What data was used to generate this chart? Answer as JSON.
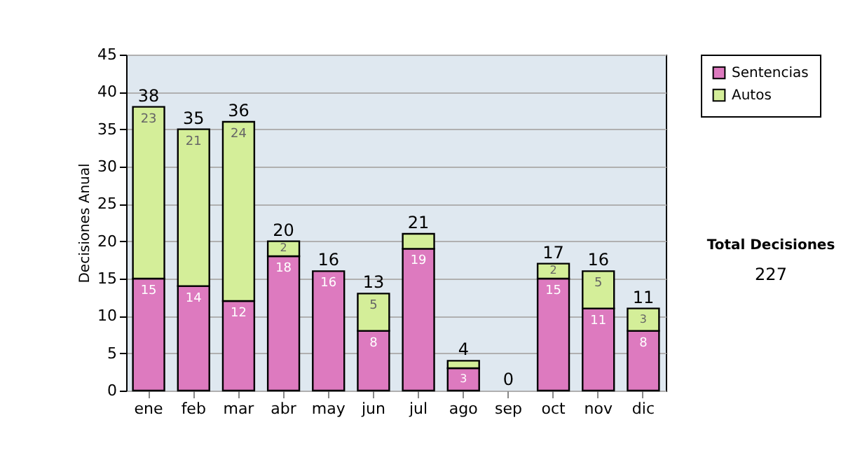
{
  "chart_data": {
    "type": "bar",
    "ylabel": "Decisiones Anual",
    "stacked": true,
    "categories": [
      "ene",
      "feb",
      "mar",
      "abr",
      "may",
      "jun",
      "jul",
      "ago",
      "sep",
      "oct",
      "nov",
      "dic"
    ],
    "series": [
      {
        "name": "Sentencias",
        "color": "#dd7abf",
        "values": [
          15,
          14,
          12,
          18,
          16,
          8,
          19,
          3,
          0,
          15,
          11,
          8
        ],
        "value_labels": [
          "15",
          "14",
          "12",
          "18",
          "16",
          "8",
          "19",
          "3",
          null,
          "15",
          "11",
          "8"
        ]
      },
      {
        "name": "Autos",
        "color": "#d4ee99",
        "values": [
          23,
          21,
          24,
          2,
          0,
          5,
          2,
          1,
          0,
          2,
          5,
          3
        ],
        "value_labels": [
          "23",
          "21",
          "24",
          "2",
          null,
          "5",
          null,
          null,
          null,
          "2",
          "5",
          "3"
        ]
      }
    ],
    "totals": [
      "38",
      "35",
      "36",
      "20",
      "16",
      "13",
      "21",
      "4",
      "0",
      "17",
      "16",
      "11"
    ],
    "ylim": [
      0,
      45
    ],
    "yticks": [
      0,
      5,
      10,
      15,
      20,
      25,
      30,
      35,
      40,
      45
    ],
    "grid": "y",
    "legend": "right",
    "annotations": [
      "Total Decisiones",
      "227"
    ]
  }
}
